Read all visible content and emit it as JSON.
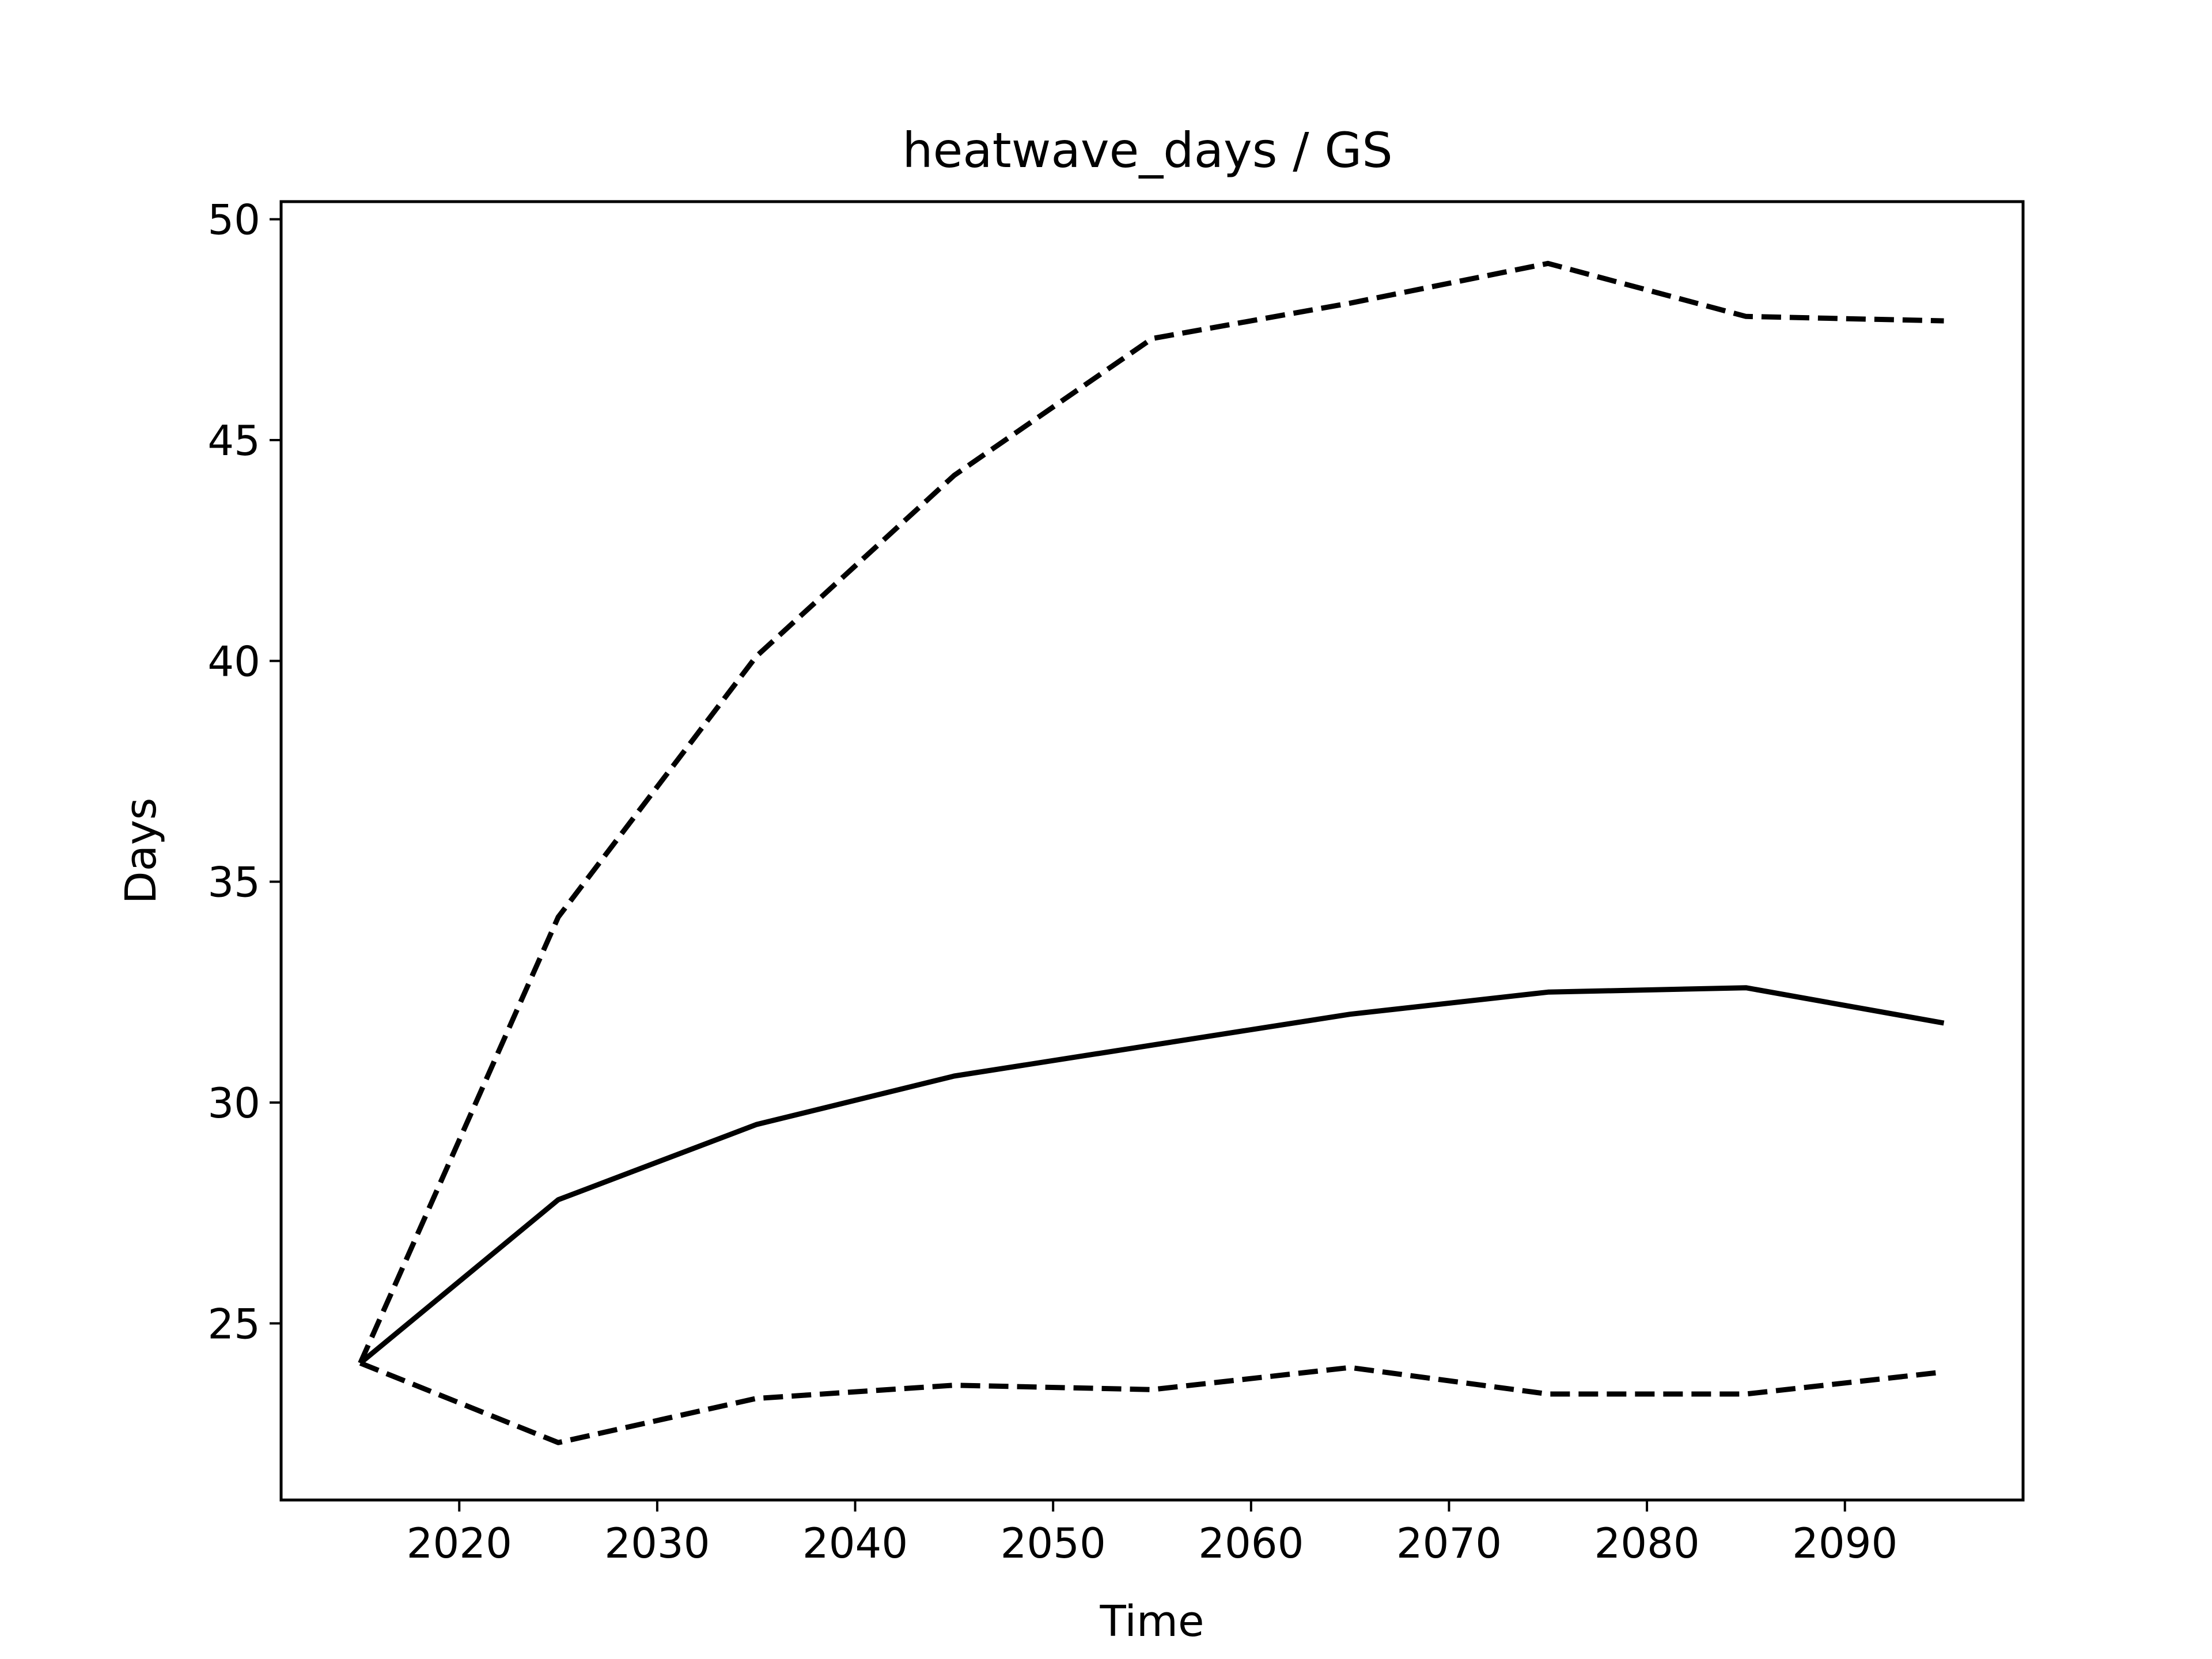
{
  "chart_data": {
    "type": "line",
    "title": "heatwave_days / GS",
    "xlabel": "Time",
    "ylabel": "Days",
    "xlim": [
      2011,
      2099
    ],
    "ylim": [
      21,
      50.4
    ],
    "x_ticks": [
      "2020",
      "2030",
      "2040",
      "2050",
      "2060",
      "2070",
      "2080",
      "2090"
    ],
    "y_ticks": [
      "25",
      "30",
      "35",
      "40",
      "45",
      "50"
    ],
    "grid": false,
    "legend": "none",
    "x": [
      2015,
      2025,
      2035,
      2045,
      2055,
      2065,
      2075,
      2085,
      2095
    ],
    "series": [
      {
        "style": "solid",
        "color": "#000000",
        "values": [
          24.1,
          27.8,
          29.5,
          30.6,
          31.3,
          32.0,
          32.5,
          32.6,
          31.8
        ]
      },
      {
        "style": "dashed",
        "color": "#000000",
        "values": [
          24.1,
          34.2,
          40.1,
          44.2,
          47.3,
          48.1,
          49.0,
          47.8,
          47.7
        ]
      },
      {
        "style": "dashed",
        "color": "#000000",
        "values": [
          24.1,
          22.3,
          23.3,
          23.6,
          23.5,
          24.0,
          23.4,
          23.4,
          23.9
        ]
      }
    ]
  }
}
